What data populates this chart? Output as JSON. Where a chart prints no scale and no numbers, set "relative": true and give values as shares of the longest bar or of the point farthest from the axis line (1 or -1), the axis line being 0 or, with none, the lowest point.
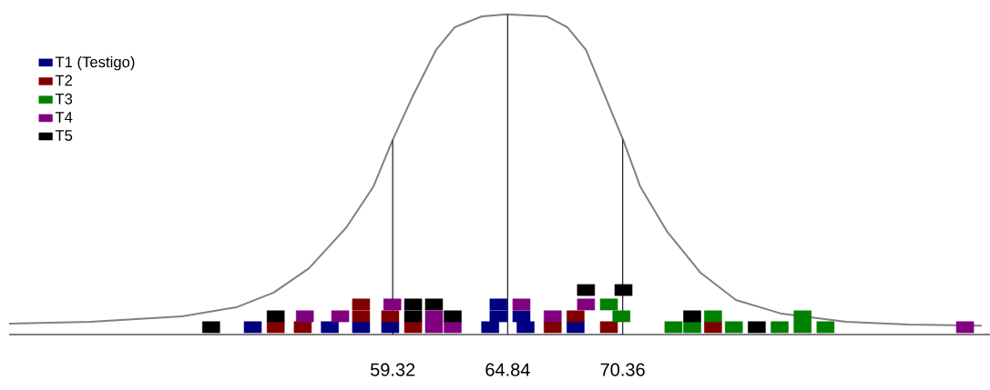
{
  "chart_data": {
    "type": "scatter",
    "relative": true,
    "xlim": [
      40.9,
      88.0
    ],
    "xticks": [
      59.32,
      64.84,
      70.36
    ],
    "marker": "square",
    "legend": "top left",
    "ref_lines": [
      {
        "axis": "x",
        "value": 59.32,
        "color": "#303030"
      },
      {
        "axis": "x",
        "value": 64.84,
        "color": "#303030"
      },
      {
        "axis": "x",
        "value": 70.36,
        "color": "#303030"
      }
    ],
    "series": [
      {
        "name": "T1 (Testigo)",
        "color": "#000080",
        "x": [
          52.6,
          56.3,
          57.8,
          59.2,
          64.0,
          65.7,
          68.1,
          64.4,
          65.5,
          64.4
        ],
        "values": [
          0.023,
          0.023,
          0.023,
          0.023,
          0.023,
          0.023,
          0.023,
          0.057,
          0.057,
          0.094
        ]
      },
      {
        "name": "T2",
        "color": "#800000",
        "x": [
          53.7,
          55.0,
          60.3,
          57.8,
          59.2,
          57.8,
          67.0,
          69.7,
          68.1,
          74.7
        ],
        "values": [
          0.023,
          0.023,
          0.023,
          0.057,
          0.057,
          0.094,
          0.023,
          0.023,
          0.057,
          0.023
        ]
      },
      {
        "name": "T3",
        "color": "#008000",
        "x": [
          72.8,
          70.3,
          69.7,
          73.7,
          75.7,
          77.9,
          79.0,
          80.1,
          74.7,
          79.0
        ],
        "values": [
          0.023,
          0.057,
          0.094,
          0.023,
          0.023,
          0.023,
          0.023,
          0.023,
          0.057,
          0.057
        ]
      },
      {
        "name": "T4",
        "color": "#800080",
        "x": [
          61.3,
          62.2,
          55.1,
          56.8,
          61.3,
          59.3,
          67.0,
          65.5,
          68.6,
          86.8
        ],
        "values": [
          0.023,
          0.023,
          0.057,
          0.057,
          0.057,
          0.094,
          0.057,
          0.094,
          0.094,
          0.023
        ]
      },
      {
        "name": "T5",
        "color": "#000000",
        "x": [
          50.6,
          53.7,
          60.3,
          62.2,
          60.3,
          61.3,
          68.6,
          70.4,
          73.7,
          76.8
        ],
        "values": [
          0.023,
          0.057,
          0.057,
          0.057,
          0.094,
          0.094,
          0.139,
          0.139,
          0.057,
          0.023
        ]
      },
      {
        "type": "line",
        "marker": "none",
        "color": "#808080",
        "x": [
          40.9,
          44.8,
          49.2,
          51.8,
          53.6,
          55.3,
          57.1,
          58.4,
          59.3,
          60.3,
          61.4,
          62.3,
          63.6,
          64.8,
          66.7,
          67.7,
          68.6,
          69.5,
          70.4,
          71.2,
          72.5,
          74.1,
          75.8,
          78.0,
          81.1,
          84.1,
          87.6
        ],
        "values": [
          0.034,
          0.04,
          0.057,
          0.085,
          0.131,
          0.207,
          0.335,
          0.463,
          0.605,
          0.747,
          0.889,
          0.96,
          0.994,
          1.0,
          0.994,
          0.96,
          0.889,
          0.747,
          0.605,
          0.463,
          0.321,
          0.193,
          0.108,
          0.065,
          0.04,
          0.031,
          0.028
        ]
      }
    ]
  }
}
